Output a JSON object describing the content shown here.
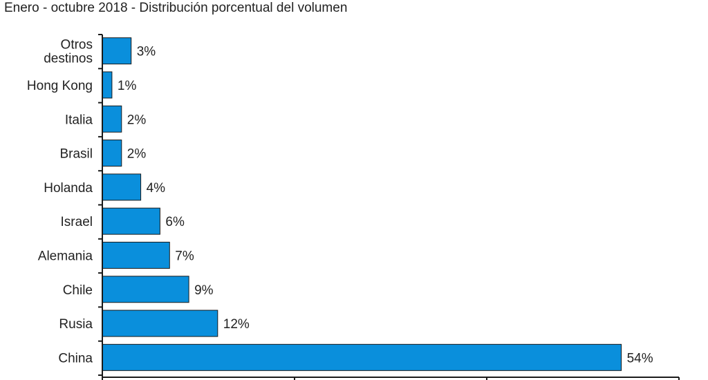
{
  "title": "Enero - octubre 2018 - Distribución porcentual del volumen",
  "chart_data": {
    "type": "bar",
    "orientation": "horizontal",
    "title": "Enero - octubre 2018 - Distribución porcentual del volumen",
    "xlabel": "",
    "ylabel": "",
    "xlim": [
      0,
      60
    ],
    "grid": false,
    "bar_color": "#0a8fdc",
    "categories": [
      "Otros destinos",
      "Hong Kong",
      "Italia",
      "Brasil",
      "Holanda",
      "Israel",
      "Alemania",
      "Chile",
      "Rusia",
      "China"
    ],
    "category_lines": [
      [
        "Otros",
        "destinos"
      ],
      [
        "Hong Kong"
      ],
      [
        "Italia"
      ],
      [
        "Brasil"
      ],
      [
        "Holanda"
      ],
      [
        "Israel"
      ],
      [
        "Alemania"
      ],
      [
        "Chile"
      ],
      [
        "Rusia"
      ],
      [
        "China"
      ]
    ],
    "values": [
      3,
      1,
      2,
      2,
      4,
      6,
      7,
      9,
      12,
      54
    ],
    "data_labels": [
      "3%",
      "1%",
      "2%",
      "2%",
      "4%",
      "6%",
      "7%",
      "9%",
      "12%",
      "54%"
    ]
  }
}
